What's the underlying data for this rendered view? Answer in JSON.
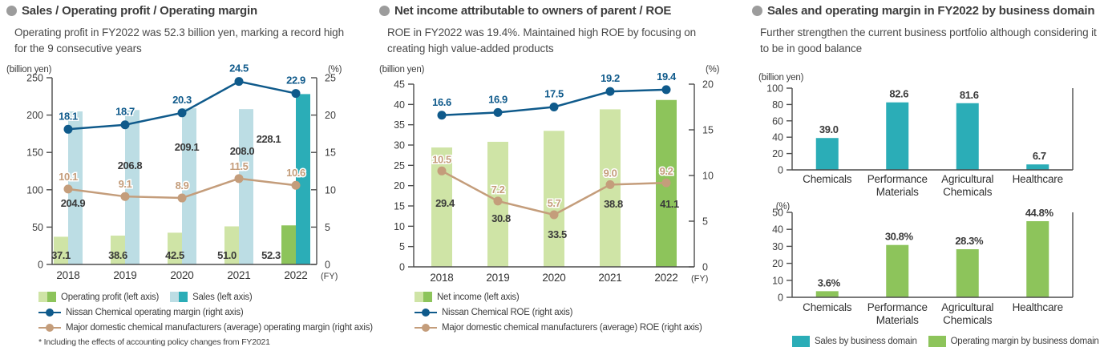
{
  "colors": {
    "light_green": "#cfe4a6",
    "green": "#8dc45b",
    "light_blue": "#bcdde4",
    "teal": "#2badb7",
    "blue": "#0f5a8b",
    "tan": "#c49d7b",
    "text_dark": "#3d3d3d",
    "bullet_gray": "#9c9c9c"
  },
  "panels": {
    "left": {
      "title": "Sales / Operating profit / Operating margin",
      "subtitle": "Operating profit in FY2022 was 52.3 billion yen, marking a record high for the 9 consecutive years",
      "legend": [
        {
          "label": "Operating profit (left axis)"
        },
        {
          "label": "Sales (left axis)"
        },
        {
          "label": "Nissan Chemical operating margin (right axis)"
        },
        {
          "label": "Major domestic chemical manufacturers (average) operating margin (right axis)"
        }
      ],
      "footnote": "* Including the effects of accounting policy changes from FY2021"
    },
    "middle": {
      "title": "Net income attributable to owners of parent / ROE",
      "subtitle": "ROE in FY2022 was 19.4%. Maintained high ROE by focusing on creating high value-added products",
      "legend": [
        {
          "label": "Net income (left axis)"
        },
        {
          "label": "Nissan Chemical ROE (right axis)"
        },
        {
          "label": "Major domestic chemical manufacturers (average) ROE (right axis)"
        }
      ]
    },
    "right": {
      "title": "Sales and operating margin in FY2022 by business domain",
      "subtitle": "Further strengthen the current business portfolio although considering it to be in good balance",
      "legend": [
        {
          "label": "Sales by business domain"
        },
        {
          "label": "Operating margin by business domain"
        }
      ]
    }
  },
  "chart_data": [
    {
      "id": "sales-profit-margin",
      "type": "bar+line",
      "title": "Sales / Operating profit / Operating margin",
      "categories": [
        "2018",
        "2019",
        "2020",
        "2021",
        "2022"
      ],
      "fy_label": "(FY)",
      "left_axis": {
        "label": "(billion yen)",
        "ticks": [
          0,
          50,
          100,
          150,
          200,
          250
        ],
        "max": 250
      },
      "right_axis": {
        "label": "(%)",
        "ticks": [
          0,
          5,
          10,
          15,
          20,
          25
        ],
        "max": 25
      },
      "series": [
        {
          "name": "Operating profit (left axis)",
          "type": "bar",
          "axis": "left",
          "values": [
            37.1,
            38.6,
            42.5,
            51.0,
            52.3
          ]
        },
        {
          "name": "Sales (left axis)",
          "type": "bar",
          "axis": "left",
          "values": [
            204.9,
            206.8,
            209.1,
            208.0,
            228.1
          ]
        },
        {
          "name": "Nissan Chemical operating margin (right axis)",
          "type": "line",
          "axis": "right",
          "values": [
            18.1,
            18.7,
            20.3,
            24.5,
            22.9
          ]
        },
        {
          "name": "Major domestic chemical manufacturers (average) operating margin (right axis)",
          "type": "line",
          "axis": "right",
          "values": [
            10.1,
            9.1,
            8.9,
            11.5,
            10.6
          ]
        }
      ]
    },
    {
      "id": "net-income-roe",
      "type": "bar+line",
      "title": "Net income attributable to owners of parent / ROE",
      "categories": [
        "2018",
        "2019",
        "2020",
        "2021",
        "2022"
      ],
      "fy_label": "(FY)",
      "left_axis": {
        "label": "(billion yen)",
        "ticks": [
          0,
          5,
          10,
          15,
          20,
          25,
          30,
          35,
          40,
          45
        ],
        "max": 45
      },
      "right_axis": {
        "label": "(%)",
        "ticks": [
          0,
          5,
          10,
          15,
          20
        ],
        "max": 20
      },
      "series": [
        {
          "name": "Net income (left axis)",
          "type": "bar",
          "axis": "left",
          "values": [
            29.4,
            30.8,
            33.5,
            38.8,
            41.1
          ]
        },
        {
          "name": "Nissan Chemical ROE (right axis)",
          "type": "line",
          "axis": "right",
          "values": [
            16.6,
            16.9,
            17.5,
            19.2,
            19.4
          ]
        },
        {
          "name": "Major domestic chemical manufacturers (average) ROE (right axis)",
          "type": "line",
          "axis": "right",
          "values": [
            10.5,
            7.2,
            5.7,
            9.0,
            9.2
          ]
        }
      ]
    },
    {
      "id": "sales-by-domain",
      "type": "bar",
      "title": "Sales by business domain (FY2022)",
      "categories": [
        "Chemicals",
        "Performance Materials",
        "Agricultural Chemicals",
        "Healthcare"
      ],
      "values": [
        39.0,
        82.6,
        81.6,
        6.7
      ],
      "ylabel": "(billion yen)",
      "ticks": [
        0,
        20,
        40,
        60,
        80,
        100
      ],
      "ylim": [
        0,
        100
      ],
      "value_suffix": ""
    },
    {
      "id": "operating-margin-by-domain",
      "type": "bar",
      "title": "Operating margin by business domain (FY2022)",
      "categories": [
        "Chemicals",
        "Performance Materials",
        "Agricultural Chemicals",
        "Healthcare"
      ],
      "values": [
        3.6,
        30.8,
        28.3,
        44.8
      ],
      "ylabel": "(%)",
      "ticks": [
        0,
        10,
        20,
        30,
        40,
        50
      ],
      "ylim": [
        0,
        50
      ],
      "value_suffix": "%"
    }
  ]
}
